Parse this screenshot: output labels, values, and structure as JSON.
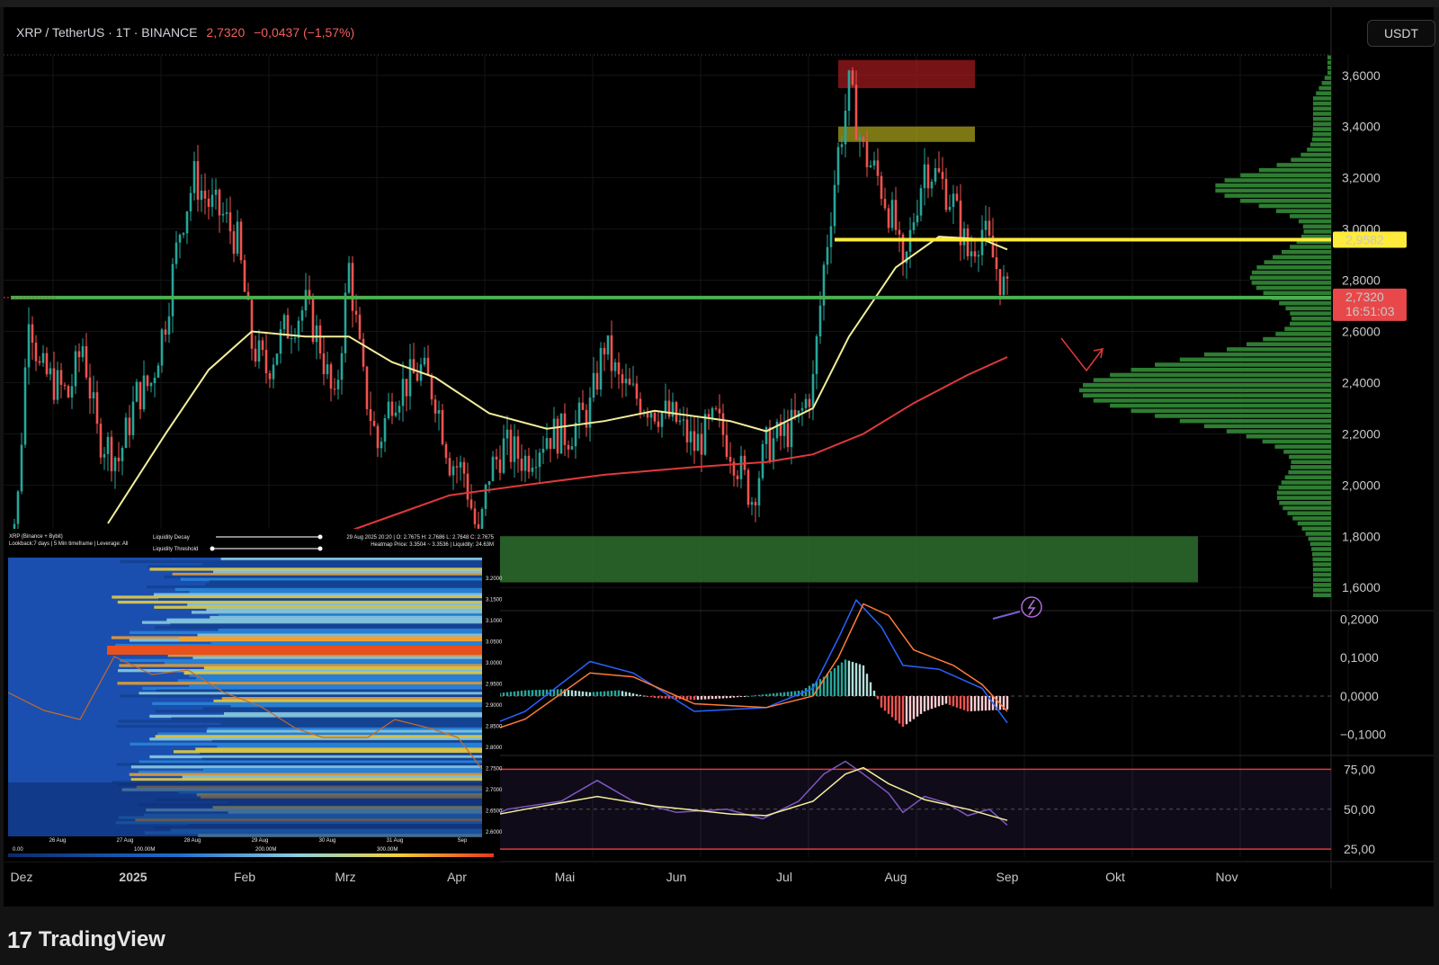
{
  "header": {
    "symbol": "XRP / TetherUS · 1T · BINANCE",
    "price": "2,7320",
    "change": "−0,0437 (−1,57%)"
  },
  "currency_button": "USDT",
  "footer": {
    "logo_icon": "tradingview-logo-icon",
    "brand": "TradingView"
  },
  "price_axis": {
    "labels": [
      "3,6000",
      "3,4000",
      "3,2000",
      "3,0000",
      "2,8000",
      "2,6000",
      "2,4000",
      "2,2000",
      "2,0000",
      "1,8000",
      "1,6000"
    ]
  },
  "price_tags": {
    "resistance": "2,9582",
    "last_price": "2,7320",
    "countdown": "16:51:03"
  },
  "macd_axis": {
    "labels": [
      "0,2000",
      "0,1000",
      "0,0000",
      "−0,1000"
    ]
  },
  "rsi_axis": {
    "labels": [
      "75,00",
      "50,00",
      "25,00"
    ]
  },
  "time_axis": {
    "labels": [
      "Dez",
      "2025",
      "Feb",
      "Mrz",
      "Apr",
      "Mai",
      "Jun",
      "Jul",
      "Aug",
      "Sep",
      "Okt",
      "Nov"
    ]
  },
  "heatmap_inset": {
    "source": "XRP (Binance + Bybit)",
    "lookback": "Lookback:7 days | 5 Min timeframe | Leverage: All",
    "decay_label": "Liquidity Decay",
    "threshold_label": "Liquidity Threshold",
    "ohlc": "29 Aug 2025 20:20 | O: 2.7675 H: 2.7686 L: 2.7648 C: 2.7675",
    "heatmap_price": "Heatmap Price: 3.3504 ~ 3.3536 | Liquidity: 24.63M",
    "x_ticks": [
      "26 Aug",
      "27 Aug",
      "28 Aug",
      "29 Aug",
      "30 Aug",
      "31 Aug",
      "Sep"
    ],
    "y_ticks": [
      "3.2000",
      "3.1500",
      "3.1000",
      "3.0500",
      "3.0000",
      "2.9500",
      "2.9000",
      "2.8500",
      "2.8000",
      "2.7500",
      "2.7000",
      "2.6500",
      "2.6000"
    ],
    "scale_ticks": [
      "0.00",
      "100.00M",
      "200.00M",
      "300.00M"
    ]
  },
  "colors": {
    "up": "#26a69a",
    "down": "#ef5350",
    "ma_fast": "#f3ee9a",
    "ma_slow": "#e0393c",
    "support": "#4caf50",
    "resistance": "#ffeb3b",
    "volume_profile": "#2e7d32"
  },
  "chart_data": [
    {
      "type": "candlestick",
      "title": "XRP / TetherUS",
      "x_range": [
        "2024-11-26",
        "2025-11-30"
      ],
      "ylim": [
        1.52,
        3.68
      ],
      "close_path": [
        [
          "2024-11-26",
          1.6
        ],
        [
          "2024-11-30",
          1.95
        ],
        [
          "2024-12-03",
          2.7
        ],
        [
          "2024-12-06",
          2.45
        ],
        [
          "2024-12-10",
          2.4
        ],
        [
          "2024-12-14",
          2.35
        ],
        [
          "2024-12-18",
          2.55
        ],
        [
          "2024-12-22",
          2.2
        ],
        [
          "2024-12-28",
          2.1
        ],
        [
          "2025-01-02",
          2.35
        ],
        [
          "2025-01-06",
          2.4
        ],
        [
          "2025-01-10",
          2.65
        ],
        [
          "2025-01-14",
          3.0
        ],
        [
          "2025-01-18",
          3.2
        ],
        [
          "2025-01-22",
          3.1
        ],
        [
          "2025-01-26",
          3.05
        ],
        [
          "2025-01-30",
          2.95
        ],
        [
          "2025-02-03",
          2.55
        ],
        [
          "2025-02-07",
          2.45
        ],
        [
          "2025-02-12",
          2.6
        ],
        [
          "2025-02-18",
          2.7
        ],
        [
          "2025-02-22",
          2.55
        ],
        [
          "2025-02-26",
          2.3
        ],
        [
          "2025-03-02",
          2.85
        ],
        [
          "2025-03-06",
          2.4
        ],
        [
          "2025-03-10",
          2.15
        ],
        [
          "2025-03-14",
          2.35
        ],
        [
          "2025-03-18",
          2.4
        ],
        [
          "2025-03-22",
          2.45
        ],
        [
          "2025-03-26",
          2.35
        ],
        [
          "2025-03-30",
          2.1
        ],
        [
          "2025-04-03",
          2.05
        ],
        [
          "2025-04-07",
          1.78
        ],
        [
          "2025-04-10",
          2.05
        ],
        [
          "2025-04-14",
          2.15
        ],
        [
          "2025-04-20",
          2.1
        ],
        [
          "2025-04-26",
          2.2
        ],
        [
          "2025-05-02",
          2.2
        ],
        [
          "2025-05-08",
          2.3
        ],
        [
          "2025-05-12",
          2.55
        ],
        [
          "2025-05-16",
          2.4
        ],
        [
          "2025-05-20",
          2.35
        ],
        [
          "2025-05-26",
          2.3
        ],
        [
          "2025-06-01",
          2.25
        ],
        [
          "2025-06-06",
          2.15
        ],
        [
          "2025-06-12",
          2.25
        ],
        [
          "2025-06-16",
          2.15
        ],
        [
          "2025-06-22",
          1.95
        ],
        [
          "2025-06-26",
          2.15
        ],
        [
          "2025-07-01",
          2.2
        ],
        [
          "2025-07-05",
          2.25
        ],
        [
          "2025-07-09",
          2.4
        ],
        [
          "2025-07-12",
          2.85
        ],
        [
          "2025-07-16",
          3.3
        ],
        [
          "2025-07-19",
          3.55
        ],
        [
          "2025-07-23",
          3.3
        ],
        [
          "2025-07-27",
          3.2
        ],
        [
          "2025-08-01",
          3.0
        ],
        [
          "2025-08-03",
          2.8
        ],
        [
          "2025-08-06",
          3.05
        ],
        [
          "2025-08-09",
          3.25
        ],
        [
          "2025-08-13",
          3.2
        ],
        [
          "2025-08-17",
          3.1
        ],
        [
          "2025-08-21",
          2.9
        ],
        [
          "2025-08-25",
          3.0
        ],
        [
          "2025-08-29",
          2.85
        ],
        [
          "2025-09-01",
          2.732
        ]
      ],
      "ma_fast": [
        [
          "2024-12-25",
          1.85
        ],
        [
          "2025-01-10",
          2.2
        ],
        [
          "2025-01-22",
          2.45
        ],
        [
          "2025-02-03",
          2.6
        ],
        [
          "2025-02-18",
          2.58
        ],
        [
          "2025-03-02",
          2.58
        ],
        [
          "2025-03-14",
          2.48
        ],
        [
          "2025-03-26",
          2.42
        ],
        [
          "2025-04-10",
          2.28
        ],
        [
          "2025-04-26",
          2.22
        ],
        [
          "2025-05-12",
          2.25
        ],
        [
          "2025-05-26",
          2.29
        ],
        [
          "2025-06-16",
          2.25
        ],
        [
          "2025-06-26",
          2.21
        ],
        [
          "2025-07-09",
          2.3
        ],
        [
          "2025-07-19",
          2.58
        ],
        [
          "2025-08-01",
          2.85
        ],
        [
          "2025-08-13",
          2.97
        ],
        [
          "2025-08-25",
          2.96
        ],
        [
          "2025-09-01",
          2.92
        ]
      ],
      "ma_slow": [
        [
          "2025-02-26",
          1.8
        ],
        [
          "2025-03-14",
          1.88
        ],
        [
          "2025-03-30",
          1.96
        ],
        [
          "2025-04-20",
          2.0
        ],
        [
          "2025-05-12",
          2.04
        ],
        [
          "2025-06-06",
          2.07
        ],
        [
          "2025-06-26",
          2.09
        ],
        [
          "2025-07-09",
          2.12
        ],
        [
          "2025-07-23",
          2.2
        ],
        [
          "2025-08-06",
          2.32
        ],
        [
          "2025-08-21",
          2.43
        ],
        [
          "2025-09-01",
          2.5
        ]
      ],
      "horizontal_levels": [
        {
          "price": 2.9582,
          "color": "yellow",
          "from": "2025-07-15"
        },
        {
          "price": 2.732,
          "color": "green",
          "from": "2024-11-28"
        }
      ],
      "zones": [
        {
          "from": "2025-07-16",
          "to": "2025-08-23",
          "low": 3.55,
          "high": 3.66,
          "color": "red"
        },
        {
          "from": "2025-07-16",
          "to": "2025-08-23",
          "low": 3.34,
          "high": 3.4,
          "color": "yellow"
        },
        {
          "from": "2025-04-04",
          "to": "2025-10-24",
          "low": 1.62,
          "high": 1.8,
          "color": "green"
        }
      ]
    },
    {
      "type": "bar",
      "title": "MACD",
      "ylim": [
        -0.15,
        0.22
      ],
      "histogram": [
        [
          "2025-04-01",
          -0.015
        ],
        [
          "2025-04-10",
          0.005
        ],
        [
          "2025-04-20",
          0.015
        ],
        [
          "2025-04-30",
          0.018
        ],
        [
          "2025-05-08",
          0.01
        ],
        [
          "2025-05-16",
          0.015
        ],
        [
          "2025-05-26",
          -0.005
        ],
        [
          "2025-06-06",
          -0.01
        ],
        [
          "2025-06-16",
          -0.005
        ],
        [
          "2025-06-26",
          0.005
        ],
        [
          "2025-07-06",
          0.015
        ],
        [
          "2025-07-12",
          0.05
        ],
        [
          "2025-07-18",
          0.095
        ],
        [
          "2025-07-23",
          0.08
        ],
        [
          "2025-07-28",
          -0.03
        ],
        [
          "2025-08-03",
          -0.08
        ],
        [
          "2025-08-09",
          -0.04
        ],
        [
          "2025-08-15",
          -0.02
        ],
        [
          "2025-08-21",
          -0.04
        ],
        [
          "2025-09-01",
          -0.035
        ]
      ],
      "macd_line": [
        [
          "2025-04-01",
          -0.11
        ],
        [
          "2025-04-20",
          -0.04
        ],
        [
          "2025-05-08",
          0.09
        ],
        [
          "2025-05-20",
          0.06
        ],
        [
          "2025-06-06",
          -0.04
        ],
        [
          "2025-06-26",
          -0.03
        ],
        [
          "2025-07-09",
          0.02
        ],
        [
          "2025-07-16",
          0.15
        ],
        [
          "2025-07-21",
          0.25
        ],
        [
          "2025-07-28",
          0.18
        ],
        [
          "2025-08-03",
          0.08
        ],
        [
          "2025-08-13",
          0.07
        ],
        [
          "2025-08-25",
          0.02
        ],
        [
          "2025-09-01",
          -0.07
        ]
      ],
      "signal_line": [
        [
          "2025-04-01",
          -0.12
        ],
        [
          "2025-04-20",
          -0.06
        ],
        [
          "2025-05-08",
          0.06
        ],
        [
          "2025-05-20",
          0.05
        ],
        [
          "2025-06-06",
          -0.02
        ],
        [
          "2025-06-26",
          -0.03
        ],
        [
          "2025-07-09",
          0.0
        ],
        [
          "2025-07-16",
          0.1
        ],
        [
          "2025-07-23",
          0.24
        ],
        [
          "2025-07-30",
          0.21
        ],
        [
          "2025-08-06",
          0.12
        ],
        [
          "2025-08-17",
          0.08
        ],
        [
          "2025-08-25",
          0.03
        ],
        [
          "2025-09-01",
          -0.04
        ]
      ]
    },
    {
      "type": "line",
      "title": "RSI",
      "ylim": [
        20,
        82
      ],
      "overbought": 75,
      "middle": 50,
      "oversold": 25,
      "rsi": [
        [
          "2025-04-01",
          35
        ],
        [
          "2025-04-15",
          50
        ],
        [
          "2025-04-30",
          55
        ],
        [
          "2025-05-10",
          68
        ],
        [
          "2025-05-20",
          55
        ],
        [
          "2025-06-01",
          48
        ],
        [
          "2025-06-15",
          50
        ],
        [
          "2025-06-25",
          44
        ],
        [
          "2025-07-05",
          55
        ],
        [
          "2025-07-12",
          72
        ],
        [
          "2025-07-18",
          80
        ],
        [
          "2025-07-23",
          72
        ],
        [
          "2025-07-30",
          60
        ],
        [
          "2025-08-03",
          48
        ],
        [
          "2025-08-09",
          58
        ],
        [
          "2025-08-15",
          54
        ],
        [
          "2025-08-21",
          46
        ],
        [
          "2025-08-27",
          50
        ],
        [
          "2025-09-01",
          40
        ]
      ],
      "rsi_ma": [
        [
          "2025-04-01",
          42
        ],
        [
          "2025-04-20",
          50
        ],
        [
          "2025-05-10",
          58
        ],
        [
          "2025-05-26",
          52
        ],
        [
          "2025-06-16",
          47
        ],
        [
          "2025-06-26",
          46
        ],
        [
          "2025-07-09",
          55
        ],
        [
          "2025-07-18",
          72
        ],
        [
          "2025-07-23",
          76
        ],
        [
          "2025-07-30",
          66
        ],
        [
          "2025-08-09",
          56
        ],
        [
          "2025-08-21",
          50
        ],
        [
          "2025-09-01",
          43
        ]
      ]
    }
  ]
}
